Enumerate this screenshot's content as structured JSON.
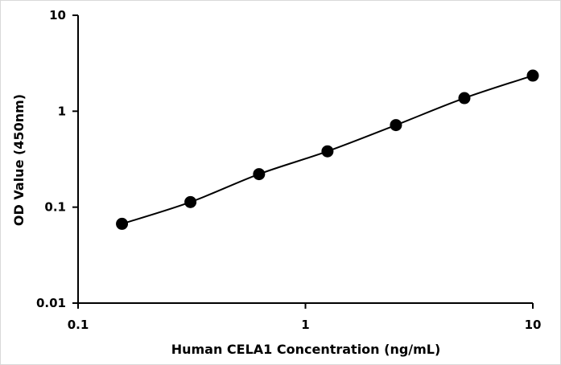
{
  "chart_data": {
    "type": "scatter",
    "title": "",
    "xlabel": "Human CELA1 Concentration (ng/mL)",
    "ylabel": "OD Value (450nm)",
    "xscale": "log",
    "yscale": "log",
    "xlim": [
      0.1,
      10
    ],
    "ylim": [
      0.01,
      10
    ],
    "x_ticks": [
      "0.1",
      "1",
      "10"
    ],
    "y_ticks": [
      "0.01",
      "0.1",
      "1",
      "10"
    ],
    "grid": false,
    "legend": "none",
    "series": [
      {
        "x": [
          0.156,
          0.312,
          0.625,
          1.25,
          2.5,
          5,
          10
        ],
        "y": [
          0.067,
          0.113,
          0.221,
          0.382,
          0.717,
          1.37,
          2.35
        ],
        "line": "smooth",
        "marker": "circle",
        "color": "#000000"
      }
    ]
  }
}
